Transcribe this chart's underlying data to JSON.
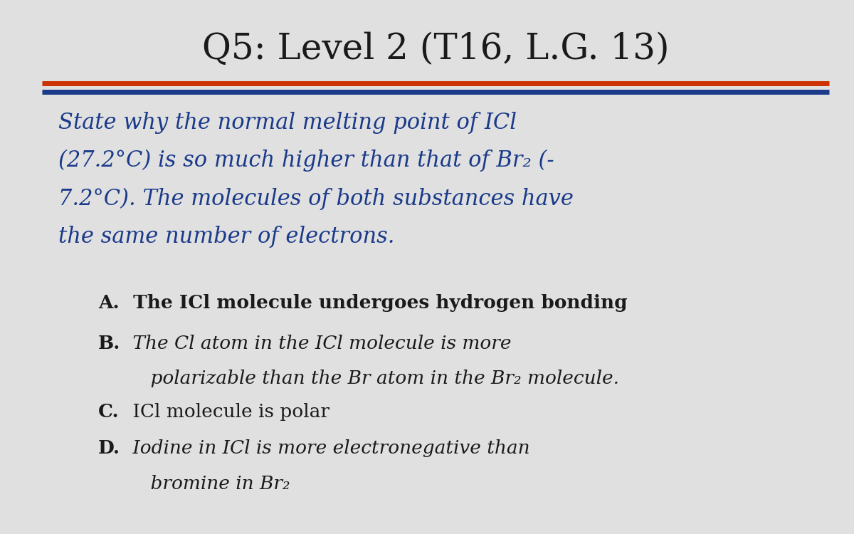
{
  "title": "Q5: Level 2 (T16, L.G. 13)",
  "title_fontsize": 36,
  "title_color": "#1a1a1a",
  "bg_color": "#e0e0e0",
  "content_bg": "#eeeeee",
  "line1_color": "#cc3300",
  "line2_color": "#1a3a8a",
  "question_text_color": "#1a3a8a",
  "answer_text_color": "#1a1a1a",
  "question_lines": [
    "State why the normal melting point of ICl",
    "(27.2°C) is so much higher than that of Br₂ (-",
    "7.2°C). The molecules of both substances have",
    "the same number of electrons."
  ],
  "answer_A_label": "A.",
  "answer_A_text": " The ICl molecule undergoes hydrogen bonding",
  "answer_B_label": "B.",
  "answer_B_line1": " The Cl atom in the ICl molecule is more",
  "answer_B_line2": "    polarizable than the Br atom in the Br₂ molecule.",
  "answer_C_label": "C.",
  "answer_C_text": " ICl molecule is polar",
  "answer_D_label": "D.",
  "answer_D_line1": " Iodine in ICl is more electronegative than",
  "answer_D_line2": "    bromine in Br₂"
}
